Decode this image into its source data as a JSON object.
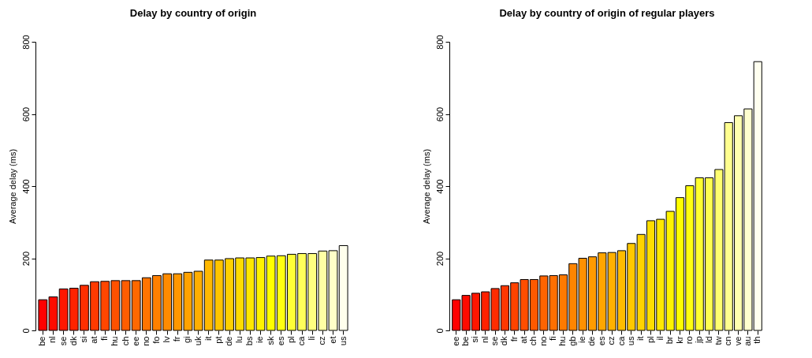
{
  "chart_data": [
    {
      "type": "bar",
      "title": "Delay by country of origin",
      "ylabel": "Average delay (ms)",
      "categories": [
        "be",
        "nl",
        "se",
        "dk",
        "si",
        "at",
        "fi",
        "hu",
        "ch",
        "ee",
        "no",
        "fo",
        "lv",
        "fr",
        "gi",
        "uk",
        "it",
        "pt",
        "de",
        "lu",
        "bs",
        "ie",
        "sk",
        "es",
        "pl",
        "ca",
        "li",
        "cz",
        "et",
        "us"
      ],
      "values": [
        85,
        93,
        115,
        117,
        125,
        135,
        136,
        138,
        138,
        138,
        146,
        152,
        157,
        157,
        161,
        164,
        195,
        195,
        199,
        201,
        201,
        202,
        206,
        207,
        211,
        213,
        213,
        220,
        221,
        235
      ],
      "colors": [
        "#ff0000",
        "#ff0c00",
        "#ff1700",
        "#ff2300",
        "#ff2e00",
        "#ff3a00",
        "#ff4600",
        "#ff5100",
        "#ff5d00",
        "#ff6800",
        "#ff7400",
        "#ff8000",
        "#ff8b00",
        "#ff9700",
        "#ffa200",
        "#ffae00",
        "#ffb900",
        "#ffc500",
        "#ffd100",
        "#ffdc00",
        "#ffe800",
        "#fff300",
        "#ffff00",
        "#ffff12",
        "#ffff37",
        "#ffff5b",
        "#ffff80",
        "#ffffa4",
        "#ffffc8",
        "#ffffed"
      ],
      "ylim": [
        0,
        800
      ],
      "yticks": [
        0,
        200,
        400,
        600,
        800
      ],
      "grid": false,
      "legend": false
    },
    {
      "type": "bar",
      "title": "Delay by country of origin of regular players",
      "ylabel": "Average delay (ms)",
      "categories": [
        "ee",
        "be",
        "si",
        "nl",
        "se",
        "dk",
        "fr",
        "at",
        "ch",
        "no",
        "fi",
        "hu",
        "gb",
        "ie",
        "de",
        "es",
        "cz",
        "ca",
        "us",
        "it",
        "pl",
        "il",
        "br",
        "kr",
        "ro",
        "jp",
        "ld",
        "tw",
        "cn",
        "ve",
        "au",
        "th"
      ],
      "values": [
        85,
        97,
        103,
        107,
        116,
        124,
        132,
        141,
        141,
        151,
        152,
        154,
        185,
        200,
        204,
        215,
        216,
        221,
        241,
        266,
        304,
        308,
        330,
        368,
        401,
        423,
        423,
        446,
        576,
        595,
        614,
        745
      ],
      "colors": [
        "#ff0000",
        "#ff0b00",
        "#ff1600",
        "#ff2100",
        "#ff2c00",
        "#ff3700",
        "#ff4300",
        "#ff4e00",
        "#ff5900",
        "#ff6400",
        "#ff6f00",
        "#ff7a00",
        "#ff8500",
        "#ff9000",
        "#ff9b00",
        "#ffa600",
        "#ffb100",
        "#ffbc00",
        "#ffc800",
        "#ffd300",
        "#ffde00",
        "#ffe900",
        "#fff400",
        "#ffff00",
        "#ffff10",
        "#ffff30",
        "#ffff50",
        "#ffff70",
        "#ffff8f",
        "#ffffaf",
        "#ffffcf",
        "#ffffef"
      ],
      "ylim": [
        0,
        800
      ],
      "yticks": [
        0,
        200,
        400,
        600,
        800
      ],
      "grid": false,
      "legend": false
    }
  ]
}
